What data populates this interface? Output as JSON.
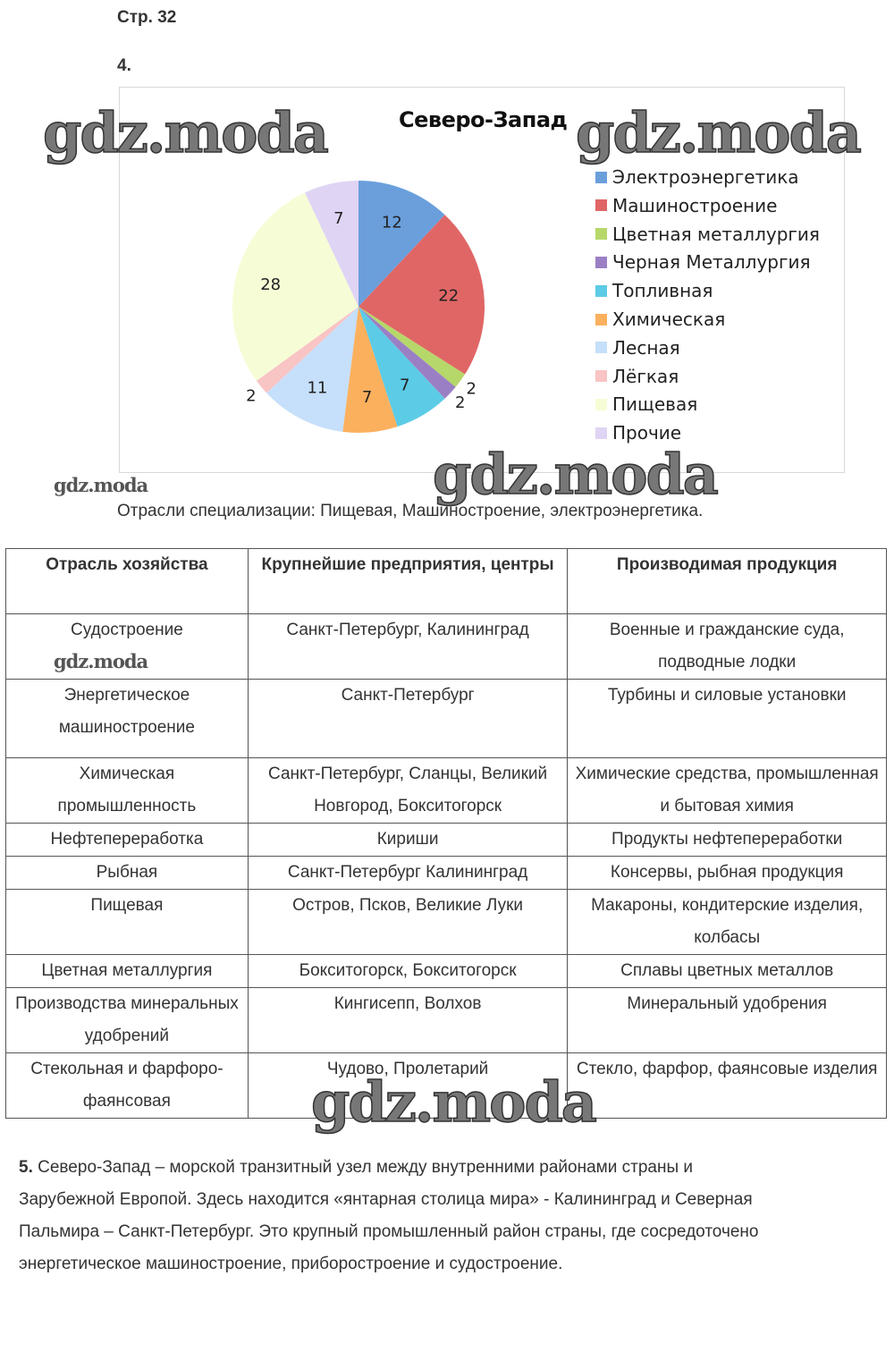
{
  "page_label": "Стр. 32",
  "task4_label": "4.",
  "watermark": "gdz.moda",
  "chart_data": {
    "type": "pie",
    "title": "Северо-Запад",
    "categories": [
      "Электроэнергетика",
      "Машиностроение",
      "Цветная металлургия",
      "Черная Металлургия",
      "Топливная",
      "Химическая",
      "Лесная",
      "Лёгкая",
      "Пищевая",
      "Прочие"
    ],
    "values": [
      12,
      22,
      2,
      2,
      7,
      7,
      11,
      2,
      28,
      7
    ],
    "colors": [
      "#6a9fdc",
      "#e06666",
      "#b6d76a",
      "#9b7fc4",
      "#5ccbe6",
      "#fbb05e",
      "#c6dffa",
      "#f9c4c4",
      "#f6fdd6",
      "#e0d4f4"
    ],
    "legend_position": "right",
    "start": "top, clockwise"
  },
  "specialization": "Отрасли специализации: Пищевая, Машиностроение, электроэнергетика.",
  "table": {
    "headers": [
      "Отрасль хозяйства",
      "Крупнейшие предприятия, центры",
      "Производимая продукция"
    ],
    "rows": [
      [
        "Судостроение",
        "Санкт-Петербург, Калининград",
        "Военные и гражданские суда, подводные лодки"
      ],
      [
        "Энергетическое машиностроение",
        "Санкт-Петербург",
        "Турбины и силовые установки"
      ],
      [
        "Химическая промышленность",
        "Санкт-Петербург, Сланцы, Великий Новгород, Бокситогорск",
        "Химические средства, промышленная и бытовая химия"
      ],
      [
        "Нефтепереработка",
        "Кириши",
        "Продукты нефтепереработки"
      ],
      [
        "Рыбная",
        "Санкт-Петербург Калининград",
        "Консервы, рыбная продукция"
      ],
      [
        "Пищевая",
        "Остров, Псков, Великие Луки",
        "Макароны, кондитерские изделия, колбасы"
      ],
      [
        "Цветная металлургия",
        "Бокситогорск, Бокситогорск",
        "Сплавы цветных металлов"
      ],
      [
        "Производства минеральных удобрений",
        "Кингисепп, Волхов",
        "Минеральный удобрения"
      ],
      [
        "Стекольная и фарфоро-фаянсовая",
        "Чудово, Пролетарий",
        "Стекло, фарфор, фаянсовые изделия"
      ]
    ]
  },
  "task5": {
    "label": "5.",
    "text": " Северо-Запад – морской транзитный узел между внутренними районами страны и Зарубежной Европой. Здесь находится «янтарная столица мира» - Калининград и Северная Пальмира – Санкт-Петербург. Это крупный промышленный район страны, где сосредоточено энергетическое машиностроение, приборостроение и судостроение."
  }
}
